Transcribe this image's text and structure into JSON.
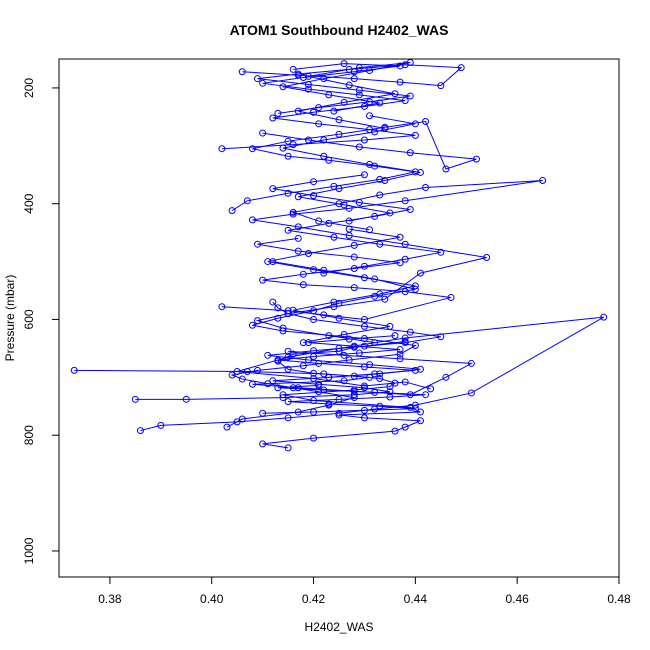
{
  "chart_data": {
    "type": "line",
    "title": "ATOM1 Southbound H2402_WAS",
    "xlabel": "H2402_WAS",
    "ylabel": "Pressure (mbar)",
    "xlim": [
      0.37,
      0.48
    ],
    "ylim": [
      1045,
      150
    ],
    "y_reversed": true,
    "x_ticks": [
      0.38,
      0.4,
      0.42,
      0.44,
      0.46,
      0.48
    ],
    "x_tick_labels": [
      "0.38",
      "0.40",
      "0.42",
      "0.44",
      "0.46",
      "0.48"
    ],
    "y_ticks": [
      200,
      400,
      600,
      800,
      1000
    ],
    "y_tick_labels": [
      "200",
      "400",
      "600",
      "800",
      "1000"
    ],
    "grid": false,
    "legend": "none",
    "series_color": "#0000ff",
    "marker": "open-circle",
    "series": [
      {
        "x": [
          0.415,
          0.41,
          0.42,
          0.436,
          0.438,
          0.441,
          0.43,
          0.425,
          0.441,
          0.439,
          0.42,
          0.414,
          0.428,
          0.435,
          0.436,
          0.433,
          0.428,
          0.42,
          0.415,
          0.413,
          0.416,
          0.425,
          0.428,
          0.438,
          0.445,
          0.439,
          0.43,
          0.42,
          0.415,
          0.413,
          0.412
        ],
        "y": [
          822,
          815,
          805,
          793,
          786,
          775,
          770,
          765,
          760,
          752,
          740,
          730,
          722,
          716,
          710,
          702,
          698,
          693,
          686,
          672,
          660,
          655,
          648,
          640,
          630,
          622,
          612,
          600,
          590,
          580,
          570
        ]
      },
      {
        "x": [
          0.386,
          0.39,
          0.405,
          0.415,
          0.425,
          0.432,
          0.44,
          0.451,
          0.477,
          0.438,
          0.425,
          0.415,
          0.405,
          0.42,
          0.43,
          0.438,
          0.443
        ],
        "y": [
          792,
          783,
          777,
          770,
          762,
          755,
          748,
          727,
          596,
          632,
          650,
          665,
          690,
          702,
          715,
          708,
          720
        ]
      },
      {
        "x": [
          0.403,
          0.406,
          0.417,
          0.423,
          0.428,
          0.421,
          0.416,
          0.411,
          0.406,
          0.404,
          0.409,
          0.418,
          0.427,
          0.437,
          0.44,
          0.43,
          0.414,
          0.408,
          0.413,
          0.42,
          0.425,
          0.432,
          0.44,
          0.432,
          0.422,
          0.412
        ],
        "y": [
          786,
          772,
          760,
          748,
          735,
          725,
          718,
          711,
          703,
          696,
          688,
          680,
          670,
          660,
          645,
          633,
          620,
          610,
          598,
          585,
          572,
          560,
          548,
          530,
          515,
          500
        ]
      },
      {
        "x": [
          0.373,
          0.407,
          0.422,
          0.431,
          0.426,
          0.408,
          0.417,
          0.428,
          0.439,
          0.446,
          0.451,
          0.437,
          0.426,
          0.415
        ],
        "y": [
          688,
          690,
          694,
          700,
          706,
          712,
          718,
          724,
          730,
          700,
          676,
          668,
          662,
          655
        ]
      },
      {
        "x": [
          0.385,
          0.395,
          0.414,
          0.428,
          0.435,
          0.43,
          0.421,
          0.412,
          0.423,
          0.433,
          0.441,
          0.431,
          0.419,
          0.411,
          0.42,
          0.43,
          0.438
        ],
        "y": [
          738,
          738,
          735,
          730,
          725,
          718,
          712,
          706,
          700,
          694,
          686,
          678,
          670,
          662,
          654,
          646,
          638
        ]
      },
      {
        "x": [
          0.402,
          0.415,
          0.422,
          0.43,
          0.447,
          0.438,
          0.428,
          0.418,
          0.41,
          0.418,
          0.428,
          0.437,
          0.428,
          0.417,
          0.409,
          0.417
        ],
        "y": [
          578,
          585,
          592,
          600,
          562,
          552,
          545,
          540,
          532,
          522,
          512,
          502,
          492,
          482,
          470,
          460
        ]
      },
      {
        "x": [
          0.432,
          0.423,
          0.414,
          0.409,
          0.415,
          0.424,
          0.434,
          0.441,
          0.454,
          0.438,
          0.427,
          0.417,
          0.408,
          0.416,
          0.427,
          0.438,
          0.465,
          0.442,
          0.433,
          0.425,
          0.416,
          0.421,
          0.431
        ],
        "y": [
          640,
          628,
          615,
          602,
          590,
          578,
          565,
          520,
          493,
          470,
          455,
          440,
          428,
          418,
          408,
          395,
          360,
          372,
          385,
          400,
          415,
          430,
          445
        ]
      },
      {
        "x": [
          0.404,
          0.407,
          0.415,
          0.424,
          0.433,
          0.44,
          0.432,
          0.423,
          0.415,
          0.408,
          0.415,
          0.425,
          0.434,
          0.442,
          0.446,
          0.452,
          0.439,
          0.429,
          0.419,
          0.41
        ],
        "y": [
          412,
          395,
          382,
          370,
          358,
          345,
          335,
          325,
          318,
          305,
          292,
          280,
          268,
          258,
          340,
          323,
          312,
          302,
          290,
          278
        ]
      },
      {
        "x": [
          0.402,
          0.416,
          0.43,
          0.44,
          0.431,
          0.421,
          0.412,
          0.42,
          0.43,
          0.438,
          0.429,
          0.419,
          0.41,
          0.418,
          0.428,
          0.437,
          0.426,
          0.416
        ],
        "y": [
          305,
          298,
          290,
          282,
          272,
          262,
          252,
          242,
          232,
          222,
          212,
          202,
          192,
          182,
          172,
          162,
          158,
          168
        ]
      },
      {
        "x": [
          0.406,
          0.417,
          0.428,
          0.437,
          0.445,
          0.449,
          0.438,
          0.427,
          0.417,
          0.409,
          0.419,
          0.429,
          0.439,
          0.431,
          0.421,
          0.413
        ],
        "y": [
          172,
          178,
          184,
          190,
          196,
          165,
          160,
          168,
          176,
          184,
          194,
          204,
          214,
          224,
          234,
          244
        ]
      },
      {
        "x": [
          0.422,
          0.43,
          0.438,
          0.445,
          0.433,
          0.424,
          0.415,
          0.423,
          0.432,
          0.439,
          0.429,
          0.42,
          0.412,
          0.42,
          0.43
        ],
        "y": [
          520,
          508,
          496,
          484,
          470,
          458,
          446,
          434,
          422,
          410,
          398,
          386,
          374,
          362,
          350
        ]
      },
      {
        "x": [
          0.418,
          0.426,
          0.435,
          0.425,
          0.416,
          0.424,
          0.433,
          0.44,
          0.43,
          0.42,
          0.411,
          0.419,
          0.428,
          0.437,
          0.427
        ],
        "y": [
          640,
          626,
          612,
          598,
          584,
          570,
          556,
          542,
          528,
          514,
          500,
          486,
          472,
          458,
          444
        ]
      },
      {
        "x": [
          0.427,
          0.435,
          0.426,
          0.417,
          0.425,
          0.434,
          0.441,
          0.431,
          0.422,
          0.414,
          0.422,
          0.432,
          0.44,
          0.431
        ],
        "y": [
          430,
          416,
          402,
          388,
          374,
          360,
          346,
          332,
          318,
          304,
          290,
          276,
          262,
          248
        ]
      },
      {
        "x": [
          0.424,
          0.433,
          0.423,
          0.414,
          0.422,
          0.431,
          0.439,
          0.429,
          0.419,
          0.427,
          0.436,
          0.426,
          0.417,
          0.425,
          0.434
        ],
        "y": [
          240,
          226,
          212,
          198,
          184,
          170,
          156,
          165,
          180,
          195,
          210,
          225,
          240,
          255,
          270
        ]
      },
      {
        "x": [
          0.41,
          0.42,
          0.43,
          0.44,
          0.433,
          0.423,
          0.415,
          0.425,
          0.435,
          0.442,
          0.432,
          0.422,
          0.413,
          0.421
        ],
        "y": [
          762,
          760,
          757,
          754,
          750,
          746,
          742,
          738,
          734,
          730,
          726,
          722,
          718,
          714
        ]
      },
      {
        "x": [
          0.423,
          0.432,
          0.44,
          0.43,
          0.421,
          0.413,
          0.42,
          0.429,
          0.437,
          0.428,
          0.419,
          0.427,
          0.436
        ],
        "y": [
          700,
          694,
          688,
          682,
          676,
          670,
          664,
          658,
          652,
          646,
          640,
          634,
          628
        ]
      }
    ]
  }
}
